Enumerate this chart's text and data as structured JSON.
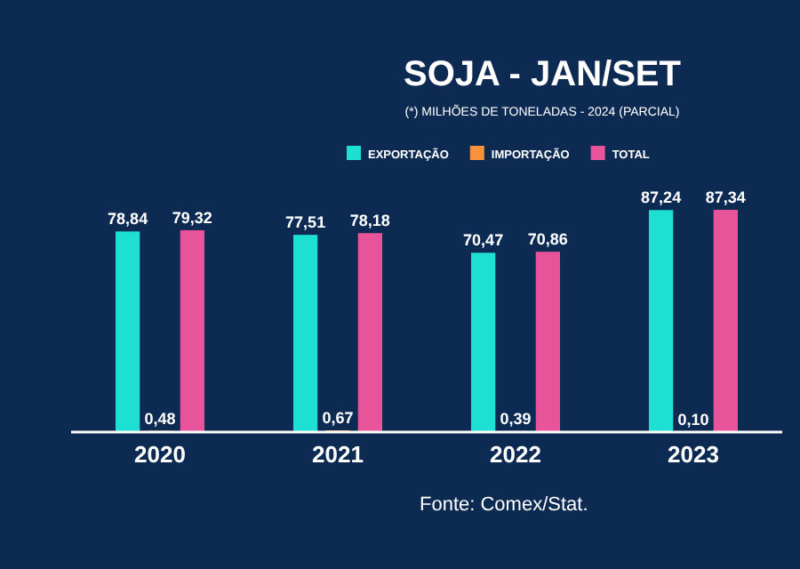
{
  "chart_data": {
    "type": "bar",
    "title": "SOJA - JAN/SET",
    "subtitle": "(*) MILHÕES DE TONELADAS - 2024 (PARCIAL)",
    "categories": [
      "2020",
      "2021",
      "2022",
      "2023"
    ],
    "series": [
      {
        "name": "EXPORTAÇÃO",
        "color": "#1ee0d2",
        "values": [
          78.84,
          77.51,
          70.47,
          87.24
        ],
        "value_labels": [
          "78,84",
          "77,51",
          "70,47",
          "87,24"
        ]
      },
      {
        "name": "IMPORTAÇÃO",
        "color": "#f7923a",
        "values": [
          0.48,
          0.67,
          0.39,
          0.1
        ],
        "value_labels": [
          "0,48",
          "0,67",
          "0,39",
          "0,10"
        ]
      },
      {
        "name": "TOTAL",
        "color": "#e8549a",
        "values": [
          79.32,
          78.18,
          70.86,
          87.34
        ],
        "value_labels": [
          "79,32",
          "78,18",
          "70,86",
          "87,34"
        ]
      }
    ],
    "legend": "top",
    "grid": false,
    "annotations": [
      "Fonte: Comex/Stat."
    ]
  }
}
